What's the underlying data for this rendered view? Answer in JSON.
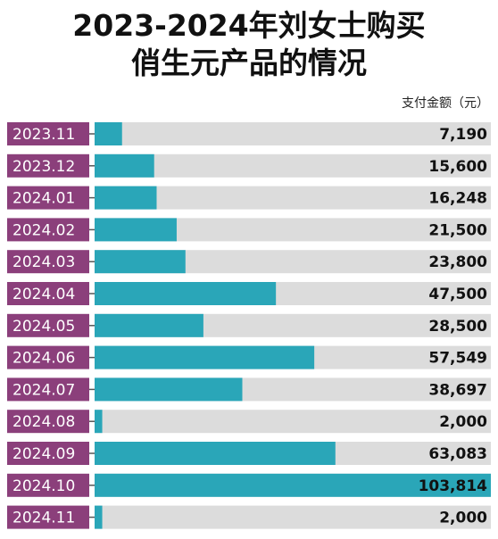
{
  "chart_data": {
    "type": "bar",
    "orientation": "horizontal",
    "title_lines": [
      "2023-2024年刘女士购买",
      "俏生元产品的情况"
    ],
    "value_header": "支付金额（元）",
    "categories": [
      "2023.11",
      "2023.12",
      "2024.01",
      "2024.02",
      "2024.03",
      "2024.04",
      "2024.05",
      "2024.06",
      "2024.07",
      "2024.08",
      "2024.09",
      "2024.10",
      "2024.11"
    ],
    "values": [
      7190,
      15600,
      16248,
      21500,
      23800,
      47500,
      28500,
      57549,
      38697,
      2000,
      63083,
      103814,
      2000
    ],
    "value_labels": [
      "7,190",
      "15,600",
      "16,248",
      "21,500",
      "23,800",
      "47,500",
      "28,500",
      "57,549",
      "38,697",
      "2,000",
      "63,083",
      "103,814",
      "2,000"
    ],
    "xlim": [
      0,
      103814
    ],
    "grid": false,
    "legend": "none",
    "colors": {
      "bar": "#2aa6b8",
      "track": "#dcdcdc",
      "label_bg": "#8b3f7b",
      "label_text": "#ffffff",
      "value_text": "#111111"
    }
  }
}
